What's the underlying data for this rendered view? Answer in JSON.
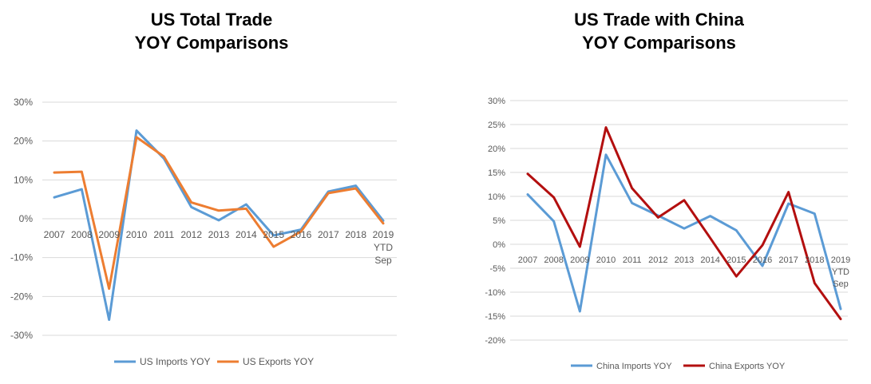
{
  "chart_data": [
    {
      "type": "line",
      "title_lines": [
        "US Total Trade",
        "YOY Comparisons"
      ],
      "categories": [
        "2007",
        "2008",
        "2009",
        "2010",
        "2011",
        "2012",
        "2013",
        "2014",
        "2015",
        "2016",
        "2017",
        "2018",
        "2019"
      ],
      "last_category_extra": [
        "YTD",
        "Sep"
      ],
      "y_tick_labels": [
        "30%",
        "20%",
        "10%",
        "0%",
        "-10%",
        "-20%",
        "-30%"
      ],
      "ylim": [
        -30,
        30
      ],
      "grid": true,
      "legend_position": "bottom",
      "series": [
        {
          "name": "US Imports YOY",
          "color": "#5b9bd5",
          "values": [
            5.5,
            7.6,
            -26,
            22.7,
            15.5,
            3.0,
            -0.4,
            3.7,
            -4.3,
            -2.8,
            7.0,
            8.5,
            -0.5
          ]
        },
        {
          "name": "US Exports YOY",
          "color": "#ed7d31",
          "values": [
            11.9,
            12.1,
            -18,
            21.0,
            16.0,
            4.2,
            2.1,
            2.6,
            -7.2,
            -3.3,
            6.6,
            7.8,
            -1.2
          ]
        }
      ]
    },
    {
      "type": "line",
      "title_lines": [
        "US Trade with China",
        "YOY Comparisons"
      ],
      "categories": [
        "2007",
        "2008",
        "2009",
        "2010",
        "2011",
        "2012",
        "2013",
        "2014",
        "2015",
        "2016",
        "2017",
        "2018",
        "2019"
      ],
      "last_category_extra": [
        "YTD",
        "Sep"
      ],
      "y_tick_labels": [
        "30%",
        "25%",
        "20%",
        "15%",
        "10%",
        "5%",
        "0%",
        "-5%",
        "-10%",
        "-15%",
        "-20%"
      ],
      "ylim": [
        -20,
        30
      ],
      "grid": true,
      "legend_position": "bottom",
      "series": [
        {
          "name": "China Imports YOY",
          "color": "#5b9bd5",
          "values": [
            10.4,
            4.8,
            -14.0,
            18.7,
            8.6,
            6.0,
            3.3,
            5.9,
            2.9,
            -4.5,
            8.5,
            6.4,
            -13.5
          ]
        },
        {
          "name": "China Exports YOY",
          "color": "#b30f0f",
          "values": [
            14.7,
            9.8,
            -0.5,
            24.4,
            11.7,
            5.6,
            9.2,
            1.3,
            -6.7,
            -0.2,
            10.9,
            -8.1,
            -15.6
          ]
        }
      ]
    }
  ]
}
